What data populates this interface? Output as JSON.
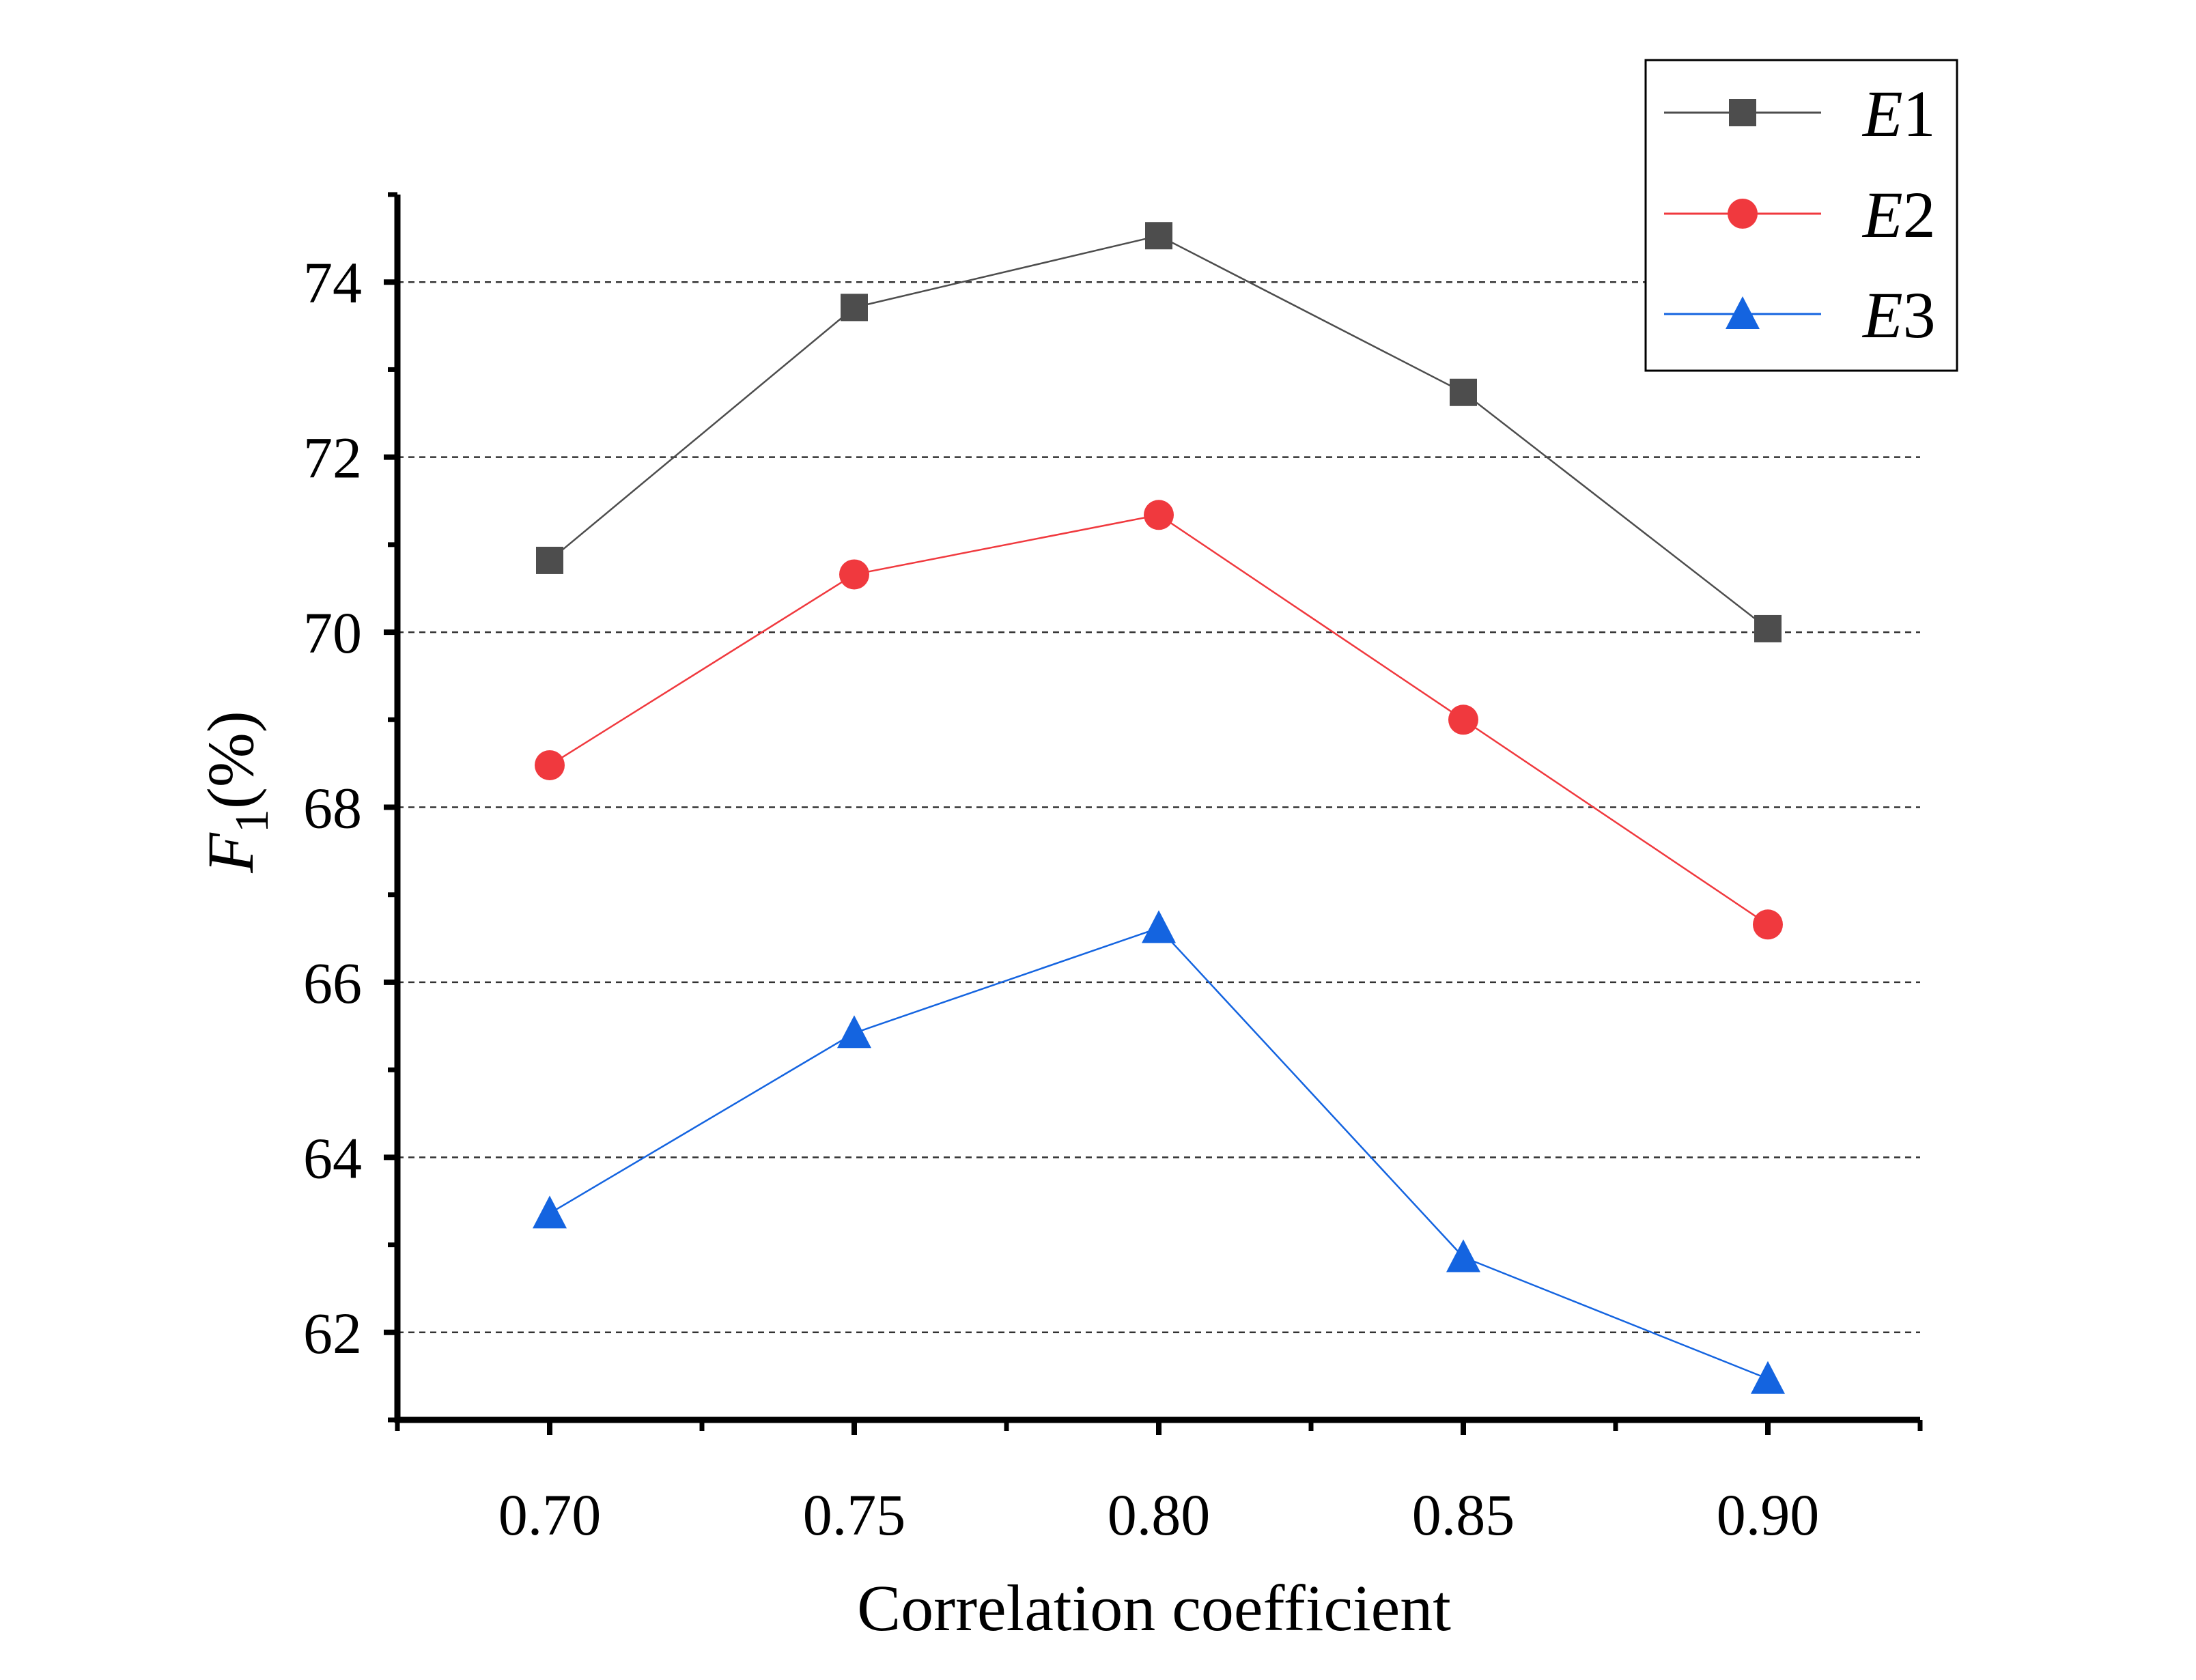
{
  "chart_data": {
    "type": "line",
    "title": "",
    "xlabel": "Correlation coefficient",
    "ylabel_main": "F",
    "ylabel_sub": "1",
    "ylabel_suffix": "(%)",
    "x": [
      0.7,
      0.75,
      0.8,
      0.85,
      0.9
    ],
    "x_tick_labels": [
      "0.70",
      "0.75",
      "0.80",
      "0.85",
      "0.90"
    ],
    "xlim": [
      0.675,
      0.925
    ],
    "ylim": [
      61.0,
      75.0
    ],
    "y_ticks": [
      62,
      64,
      66,
      68,
      70,
      72,
      74
    ],
    "y_tick_labels": [
      "62",
      "64",
      "66",
      "68",
      "70",
      "72",
      "74"
    ],
    "grid": "horizontal dashed",
    "legend_position": "top-right",
    "series": [
      {
        "name": "E1",
        "name_letter": "E",
        "name_number": "1",
        "marker": "square",
        "color": "#4d4d4d",
        "values": [
          70.82,
          73.71,
          74.53,
          72.74,
          70.04
        ]
      },
      {
        "name": "E2",
        "name_letter": "E",
        "name_number": "2",
        "marker": "circle",
        "color": "#f0393e",
        "values": [
          68.48,
          70.66,
          71.34,
          69.0,
          66.66
        ]
      },
      {
        "name": "E3",
        "name_letter": "E",
        "name_number": "3",
        "marker": "triangle",
        "color": "#1464e0",
        "values": [
          63.36,
          65.42,
          66.62,
          62.86,
          61.47
        ]
      }
    ]
  }
}
